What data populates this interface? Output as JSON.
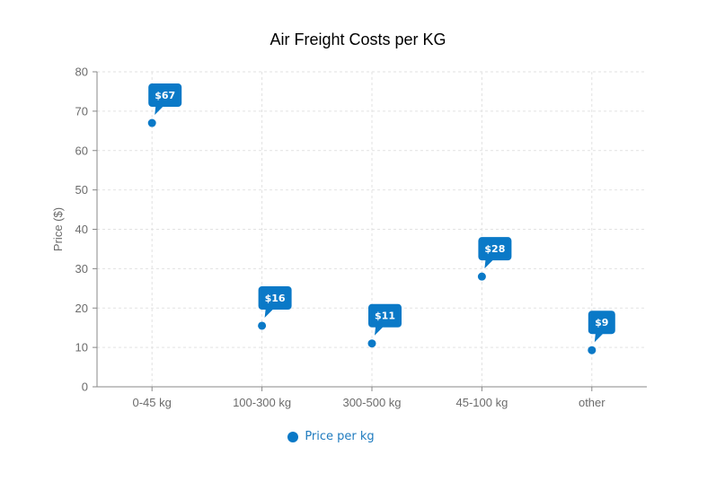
{
  "chart_data": {
    "type": "scatter",
    "title": "Air Freight Costs per KG",
    "xlabel": "",
    "ylabel": "Price ($)",
    "categories": [
      "0-45 kg",
      "100-300 kg",
      "300-500 kg",
      "45-100 kg",
      "other"
    ],
    "series": [
      {
        "name": "Price per kg",
        "values": [
          67,
          15.5,
          11,
          28,
          9.3
        ],
        "data_labels": [
          "$67",
          "$16",
          "$11",
          "$28",
          "$9"
        ]
      }
    ],
    "ylim": [
      0,
      80
    ],
    "yticks": [
      0,
      10,
      20,
      30,
      40,
      50,
      60,
      70,
      80
    ],
    "grid": true,
    "legend_position": "bottom",
    "colors": {
      "series": "#0a79c7",
      "grid": "#e2e2e2",
      "axis": "#888888",
      "legend_text": "#1f7bbf"
    }
  }
}
